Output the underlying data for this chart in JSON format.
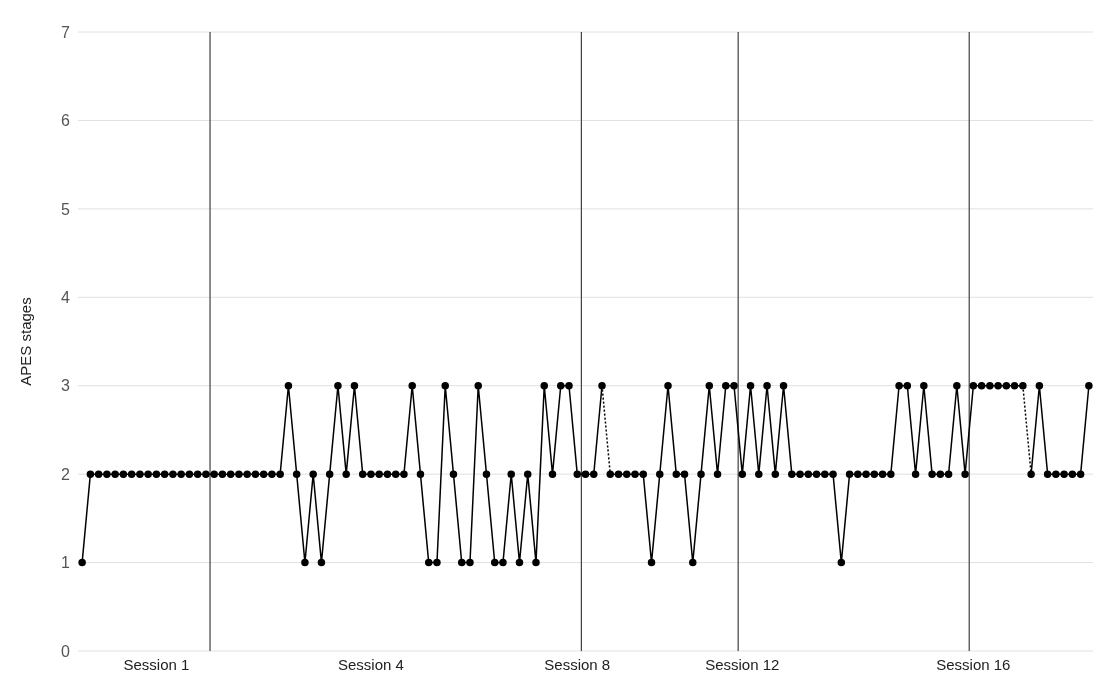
{
  "chart_data": {
    "type": "line",
    "ylabel": "APES stages",
    "ylim": [
      0,
      7
    ],
    "yticks": [
      0,
      1,
      2,
      3,
      4,
      5,
      6,
      7
    ],
    "categories": [
      null,
      null,
      null,
      null,
      null,
      null,
      null,
      null,
      null,
      "Session 1",
      null,
      null,
      null,
      null,
      null,
      null,
      null,
      null,
      null,
      null,
      null,
      null,
      null,
      null,
      null,
      null,
      null,
      null,
      null,
      null,
      null,
      null,
      null,
      null,
      null,
      "Session 4",
      null,
      null,
      null,
      null,
      null,
      null,
      null,
      null,
      null,
      null,
      null,
      null,
      null,
      null,
      null,
      null,
      null,
      null,
      null,
      null,
      null,
      null,
      null,
      null,
      "Session 8",
      null,
      null,
      null,
      null,
      null,
      null,
      null,
      null,
      null,
      null,
      null,
      null,
      null,
      null,
      null,
      null,
      null,
      null,
      null,
      "Session 12",
      null,
      null,
      null,
      null,
      null,
      null,
      null,
      null,
      null,
      null,
      null,
      null,
      null,
      null,
      null,
      null,
      null,
      null,
      null,
      null,
      null,
      null,
      null,
      null,
      null,
      null,
      null,
      "Session 16",
      null,
      null,
      null,
      null,
      null,
      null,
      null,
      null,
      null,
      null,
      null,
      null,
      null,
      null
    ],
    "grid": "y",
    "marker": "circle",
    "line_style": "solid",
    "series": [
      {
        "color": "#000000",
        "values": [
          1,
          2,
          2,
          2,
          2,
          2,
          2,
          2,
          2,
          2,
          2,
          2,
          2,
          2,
          2,
          2,
          2,
          2,
          2,
          2,
          2,
          2,
          2,
          2,
          2,
          3,
          2,
          1,
          2,
          1,
          2,
          3,
          2,
          3,
          2,
          2,
          2,
          2,
          2,
          2,
          3,
          2,
          1,
          1,
          3,
          2,
          1,
          1,
          3,
          2,
          1,
          1,
          2,
          1,
          2,
          1,
          3,
          2,
          3,
          3,
          2,
          2,
          2,
          3,
          null,
          null,
          null,
          null,
          null,
          null,
          null,
          null,
          null,
          null,
          null,
          null,
          null,
          null,
          null,
          null,
          null,
          null,
          null,
          null,
          null,
          null,
          null,
          null,
          null,
          null,
          null,
          null,
          null,
          null,
          null,
          null,
          null,
          null,
          null,
          null,
          null,
          null,
          null,
          null,
          null,
          null,
          null,
          null,
          null,
          null,
          null,
          null,
          null,
          null,
          null,
          null,
          null,
          null,
          null,
          null,
          null,
          null,
          null
        ]
      },
      {
        "color": "#000000",
        "values": [
          null,
          null,
          null,
          null,
          null,
          null,
          null,
          null,
          null,
          null,
          null,
          null,
          null,
          null,
          null,
          null,
          null,
          null,
          null,
          null,
          null,
          null,
          null,
          null,
          null,
          null,
          null,
          null,
          null,
          null,
          null,
          null,
          null,
          null,
          null,
          null,
          null,
          null,
          null,
          null,
          null,
          null,
          null,
          null,
          null,
          null,
          null,
          null,
          null,
          null,
          null,
          null,
          null,
          null,
          null,
          null,
          null,
          null,
          null,
          null,
          null,
          null,
          null,
          null,
          2,
          2,
          2,
          2,
          2,
          1,
          2,
          3,
          2,
          2,
          1,
          2,
          3,
          2,
          3,
          3,
          2,
          3,
          2,
          3,
          2,
          3,
          2,
          2,
          2,
          2,
          2,
          2,
          1,
          2,
          2,
          2,
          2,
          2,
          2,
          3,
          3,
          2,
          3,
          2,
          2,
          2,
          3,
          2,
          3,
          3,
          3,
          3,
          3,
          3,
          3,
          null,
          null,
          null,
          null,
          null,
          null,
          null,
          null
        ]
      },
      {
        "color": "#000000",
        "values": [
          null,
          null,
          null,
          null,
          null,
          null,
          null,
          null,
          null,
          null,
          null,
          null,
          null,
          null,
          null,
          null,
          null,
          null,
          null,
          null,
          null,
          null,
          null,
          null,
          null,
          null,
          null,
          null,
          null,
          null,
          null,
          null,
          null,
          null,
          null,
          null,
          null,
          null,
          null,
          null,
          null,
          null,
          null,
          null,
          null,
          null,
          null,
          null,
          null,
          null,
          null,
          null,
          null,
          null,
          null,
          null,
          null,
          null,
          null,
          null,
          null,
          null,
          null,
          null,
          null,
          null,
          null,
          null,
          null,
          null,
          null,
          null,
          null,
          null,
          null,
          null,
          null,
          null,
          null,
          null,
          null,
          null,
          null,
          null,
          null,
          null,
          null,
          null,
          null,
          null,
          null,
          null,
          null,
          null,
          null,
          null,
          null,
          null,
          null,
          null,
          null,
          null,
          null,
          null,
          null,
          null,
          null,
          null,
          null,
          null,
          null,
          null,
          null,
          null,
          null,
          2,
          3,
          2,
          2,
          2,
          2,
          2,
          3
        ]
      },
      {
        "color": "#000000",
        "line_style": "dotted",
        "marker": "none",
        "values": [
          null,
          null,
          null,
          null,
          null,
          null,
          null,
          null,
          null,
          null,
          null,
          null,
          null,
          null,
          null,
          null,
          null,
          null,
          null,
          null,
          null,
          null,
          null,
          null,
          null,
          null,
          null,
          null,
          null,
          null,
          null,
          null,
          null,
          null,
          null,
          null,
          null,
          null,
          null,
          null,
          null,
          null,
          null,
          null,
          null,
          null,
          null,
          null,
          null,
          null,
          null,
          null,
          null,
          null,
          null,
          null,
          null,
          null,
          null,
          null,
          null,
          null,
          null,
          3,
          2,
          null,
          null,
          null,
          null,
          null,
          null,
          null,
          null,
          null,
          null,
          null,
          null,
          null,
          null,
          null,
          null,
          null,
          null,
          null,
          null,
          null,
          null,
          null,
          null,
          null,
          null,
          null,
          null,
          null,
          null,
          null,
          null,
          null,
          null,
          null,
          null,
          null,
          null,
          null,
          null,
          null,
          null,
          null,
          null,
          null,
          null,
          null,
          null,
          null,
          3,
          2,
          null,
          null,
          null,
          null,
          null,
          null,
          null
        ]
      }
    ]
  }
}
